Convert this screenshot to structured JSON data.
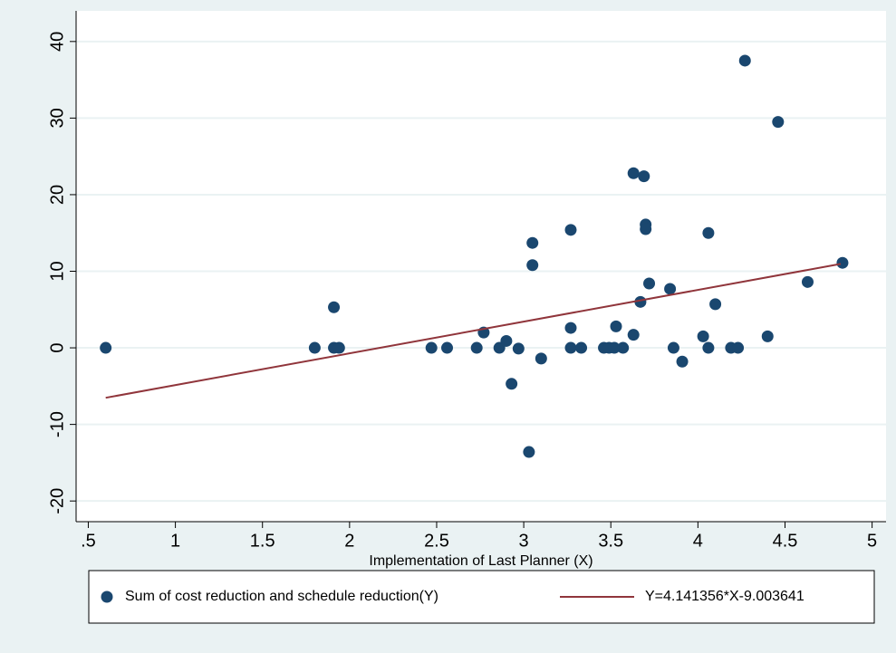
{
  "chart_data": {
    "type": "scatter",
    "xlabel": "Implementation of Last Planner (X)",
    "xlim": [
      0.43,
      5.08
    ],
    "ylim": [
      -22.7,
      44
    ],
    "xticks": [
      {
        "value": 0.5,
        "label": ".5"
      },
      1,
      1.5,
      2,
      2.5,
      3,
      3.5,
      4,
      4.5,
      5
    ],
    "yticks": [
      -20,
      -10,
      0,
      10,
      20,
      30,
      40
    ],
    "grid": true,
    "legend": "bottom",
    "series": [
      {
        "name": "Sum of cost reduction and schedule reduction(Y)",
        "type": "scatter",
        "color": "#1a476f",
        "x": [
          0.6,
          1.8,
          1.91,
          1.91,
          1.94,
          2.47,
          2.56,
          2.73,
          2.77,
          2.86,
          2.9,
          2.93,
          2.97,
          3.03,
          3.05,
          3.05,
          3.1,
          3.27,
          3.27,
          3.27,
          3.33,
          3.46,
          3.49,
          3.52,
          3.53,
          3.57,
          3.63,
          3.63,
          3.67,
          3.69,
          3.7,
          3.7,
          3.72,
          3.84,
          3.86,
          3.91,
          4.03,
          4.06,
          4.06,
          4.1,
          4.19,
          4.23,
          4.27,
          4.4,
          4.46,
          4.63,
          4.83
        ],
        "values": [
          0,
          0,
          5.3,
          0,
          0,
          0,
          0,
          0,
          2.0,
          0,
          0.9,
          -4.7,
          -0.1,
          -13.6,
          13.7,
          10.8,
          -1.4,
          15.4,
          2.6,
          0,
          0,
          0,
          0,
          0,
          2.8,
          0,
          1.7,
          22.8,
          6.0,
          22.4,
          16.1,
          15.5,
          8.4,
          7.7,
          0,
          -1.8,
          1.5,
          15.0,
          0,
          5.7,
          0,
          0,
          37.5,
          1.5,
          29.5,
          8.6,
          11.1
        ]
      },
      {
        "name": "Y=4.141356*X-9.003641",
        "type": "line",
        "color": "#90353b",
        "x": [
          0.6,
          4.82
        ],
        "values": [
          -6.52,
          10.96
        ]
      }
    ]
  }
}
